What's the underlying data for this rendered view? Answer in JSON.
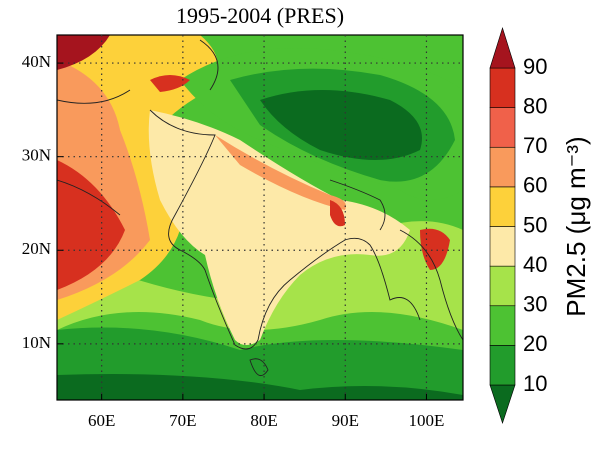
{
  "chart_data": {
    "type": "map",
    "title": "1995-2004 (PRES)",
    "xlim": [
      54.5,
      104.5
    ],
    "ylim": [
      4,
      43
    ],
    "xticks": [
      {
        "value": 60,
        "label": "60E"
      },
      {
        "value": 70,
        "label": "70E"
      },
      {
        "value": 80,
        "label": "80E"
      },
      {
        "value": 90,
        "label": "90E"
      },
      {
        "value": 100,
        "label": "100E"
      }
    ],
    "yticks": [
      {
        "value": 10,
        "label": "10N"
      },
      {
        "value": 20,
        "label": "20N"
      },
      {
        "value": 30,
        "label": "30N"
      },
      {
        "value": 40,
        "label": "40N"
      }
    ],
    "grid": true,
    "colorbar": {
      "label": "PM2.5 (μg m⁻³)",
      "levels": [
        10,
        20,
        30,
        40,
        50,
        60,
        70,
        80,
        90
      ],
      "colors": [
        "#0b6b1f",
        "#229c2c",
        "#4dc233",
        "#a6e34a",
        "#fde9a8",
        "#fdd13a",
        "#f99a5c",
        "#f0614a",
        "#d7301f",
        "#a5141e"
      ]
    }
  }
}
